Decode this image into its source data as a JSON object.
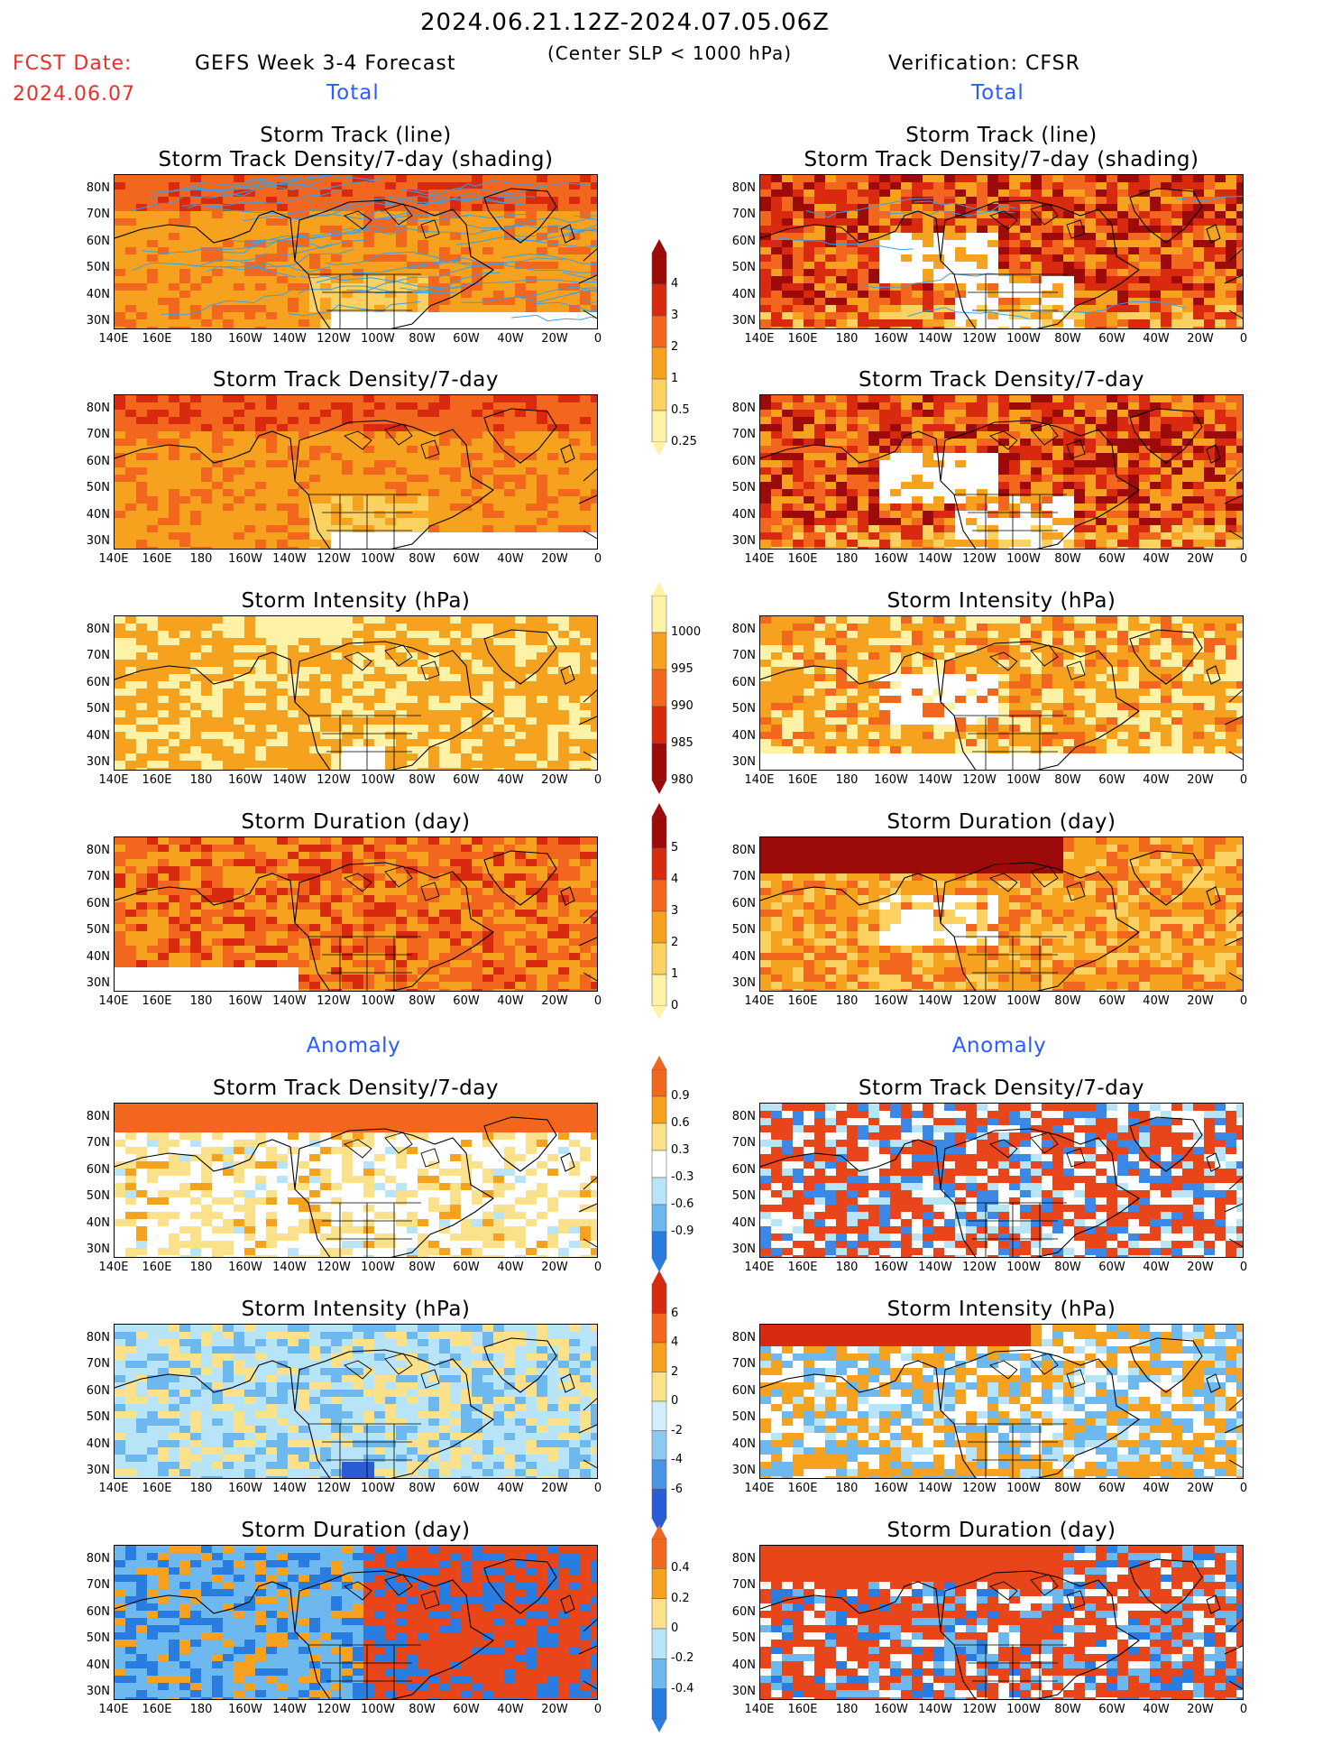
{
  "header": {
    "period": "2024.06.21.12Z-2024.07.05.06Z",
    "subtitle": "(Center SLP < 1000 hPa)",
    "fcst_label": "FCST Date:",
    "fcst_date": "2024.06.07",
    "left_title": "GEFS Week 3-4 Forecast",
    "right_title": "Verification: CFSR"
  },
  "sections": {
    "total": "Total",
    "anomaly": "Anomaly"
  },
  "panel_titles": {
    "track_line": "Storm Track (line)",
    "track_shading": "Storm Track Density/7-day (shading)",
    "density": "Storm Track Density/7-day",
    "intensity": "Storm Intensity (hPa)",
    "duration": "Storm Duration (day)"
  },
  "axes": {
    "lat_labels": [
      "80N",
      "70N",
      "60N",
      "50N",
      "40N",
      "30N"
    ],
    "lon_labels": [
      "140E",
      "160E",
      "180",
      "160W",
      "140W",
      "120W",
      "100W",
      "80W",
      "60W",
      "40W",
      "20W",
      "0"
    ]
  },
  "colorbars": {
    "density": {
      "labels": [
        "4",
        "3",
        "2",
        "1",
        "0.5",
        "0.25"
      ],
      "colors": [
        "#9c0a0a",
        "#d9290f",
        "#f2661e",
        "#f7a21f",
        "#fbd262",
        "#fdf2a6"
      ]
    },
    "intensity": {
      "labels": [
        "1000",
        "995",
        "990",
        "985",
        "980"
      ],
      "colors": [
        "#fdf2a6",
        "#f7a21f",
        "#f2661e",
        "#d9290f",
        "#9c0a0a"
      ]
    },
    "duration": {
      "labels": [
        "5",
        "4",
        "3",
        "2",
        "1",
        "0"
      ],
      "colors": [
        "#9c0a0a",
        "#d9290f",
        "#f2661e",
        "#f7a21f",
        "#fbd262",
        "#fdf2a6"
      ]
    },
    "anom_density": {
      "labels": [
        "0.9",
        "0.6",
        "0.3",
        "-0.3",
        "-0.6",
        "-0.9"
      ],
      "colors": [
        "#f2661e",
        "#f7a21f",
        "#fbe18a",
        "#ffffff",
        "#b8e4f7",
        "#6cb8ef",
        "#2a7de0"
      ]
    },
    "anom_intensity": {
      "labels": [
        "6",
        "4",
        "2",
        "0",
        "-2",
        "-4",
        "-6"
      ],
      "colors": [
        "#d9290f",
        "#f2661e",
        "#f7a21f",
        "#fbe18a",
        "#d2eefb",
        "#8cc9f2",
        "#4a94e8",
        "#2a5cd8"
      ]
    },
    "anom_duration": {
      "labels": [
        "0.4",
        "0.2",
        "0",
        "-0.2",
        "-0.4"
      ],
      "colors": [
        "#f2661e",
        "#f7a21f",
        "#fbe18a",
        "#b8e4f7",
        "#6cb8ef",
        "#2a7de0"
      ]
    }
  }
}
